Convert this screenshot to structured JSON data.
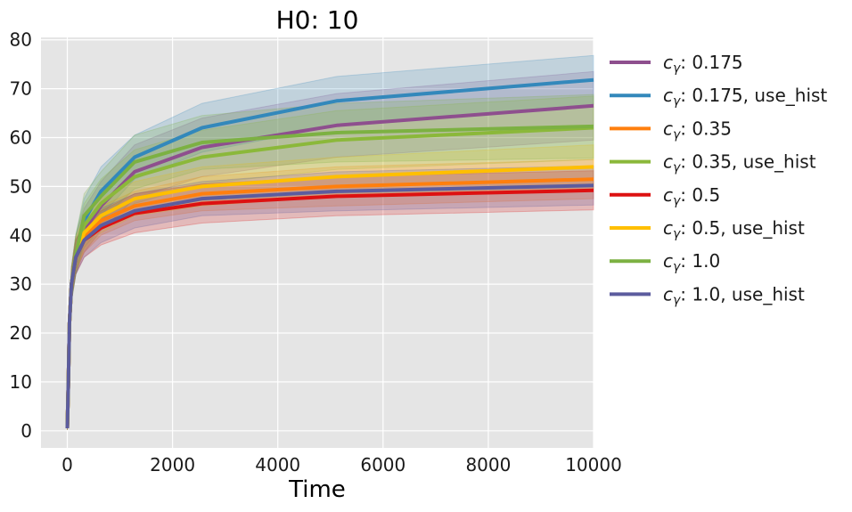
{
  "chart_data": {
    "type": "line",
    "title": "H0: 10",
    "xlabel": "Time",
    "ylabel": "",
    "xlim": [
      -500,
      10000
    ],
    "ylim": [
      -3.5,
      80.5
    ],
    "xticks": [
      0,
      2000,
      4000,
      6000,
      8000,
      10000
    ],
    "xtick_labels": [
      "0",
      "2000",
      "4000",
      "6000",
      "8000",
      "10000"
    ],
    "yticks": [
      0,
      10,
      20,
      30,
      40,
      50,
      60,
      70,
      80
    ],
    "ytick_labels": [
      "0",
      "10",
      "20",
      "30",
      "40",
      "50",
      "60",
      "70",
      "80"
    ],
    "grid": true,
    "legend_position": "outside-right",
    "legend_symbol": "c",
    "legend_subscript": "γ",
    "x": [
      0,
      20,
      40,
      80,
      160,
      320,
      640,
      1280,
      2560,
      5120,
      10000
    ],
    "series": [
      {
        "name": ": 0.175",
        "color": "#8e4f8e",
        "values": [
          0.5,
          10,
          22,
          30,
          36,
          41,
          46,
          53,
          58,
          62.5,
          66.5
        ],
        "spread": [
          0.3,
          2,
          3,
          3.5,
          4,
          4.5,
          5,
          5.5,
          6,
          6.5,
          7
        ]
      },
      {
        "name": ": 0.175, use_hist",
        "color": "#3388bb",
        "values": [
          0.5,
          10,
          22,
          30,
          36,
          43,
          49,
          56,
          62,
          67.5,
          71.8
        ],
        "spread": [
          0.3,
          2,
          3,
          3.5,
          4,
          4.5,
          5,
          4.5,
          5,
          5,
          5
        ]
      },
      {
        "name": ": 0.35",
        "color": "#ff7f0e",
        "values": [
          0.5,
          10,
          22,
          30,
          36,
          39.5,
          43,
          46,
          48.5,
          50,
          51.5
        ],
        "spread": [
          0.3,
          2,
          3,
          3,
          3,
          3,
          3,
          3,
          3.5,
          4,
          4
        ]
      },
      {
        "name": ": 0.35, use_hist",
        "color": "#8bb83a",
        "values": [
          0.5,
          10,
          22,
          30,
          36,
          42,
          46.5,
          52,
          56,
          59.5,
          62
        ],
        "spread": [
          0.3,
          2,
          3,
          3.5,
          4,
          4.5,
          5,
          5.5,
          5.5,
          6,
          6.5
        ]
      },
      {
        "name": ": 0.5",
        "color": "#dd1111",
        "values": [
          0.5,
          10,
          22,
          30,
          35.5,
          39,
          41.5,
          44.5,
          46.5,
          48,
          49.2
        ],
        "spread": [
          0.3,
          2,
          3,
          3,
          3.5,
          3.5,
          3.5,
          4,
          4,
          4,
          4
        ]
      },
      {
        "name": ": 0.5, use_hist",
        "color": "#ffbf00",
        "values": [
          0.5,
          10,
          22,
          30,
          36,
          40.5,
          44,
          47.5,
          50,
          52,
          54
        ],
        "spread": [
          0.3,
          2,
          3,
          3,
          3.5,
          3.5,
          3.5,
          3.5,
          4,
          4,
          4.5
        ]
      },
      {
        "name": ": 1.0",
        "color": "#7cb142",
        "values": [
          0.5,
          10,
          22,
          30,
          36,
          44,
          48,
          55,
          59,
          61,
          62.3
        ],
        "spread": [
          0.3,
          2,
          3,
          3.5,
          4,
          4.5,
          5,
          5.5,
          5.5,
          6,
          6.5
        ]
      },
      {
        "name": ": 1.0, use_hist",
        "color": "#5c5c9e",
        "values": [
          0.5,
          10,
          22,
          30,
          35.5,
          39,
          42,
          45,
          47.5,
          49,
          50.2
        ],
        "spread": [
          0.3,
          2,
          3,
          3,
          3.5,
          3.5,
          3.5,
          3.5,
          3.5,
          4,
          4
        ]
      }
    ]
  }
}
